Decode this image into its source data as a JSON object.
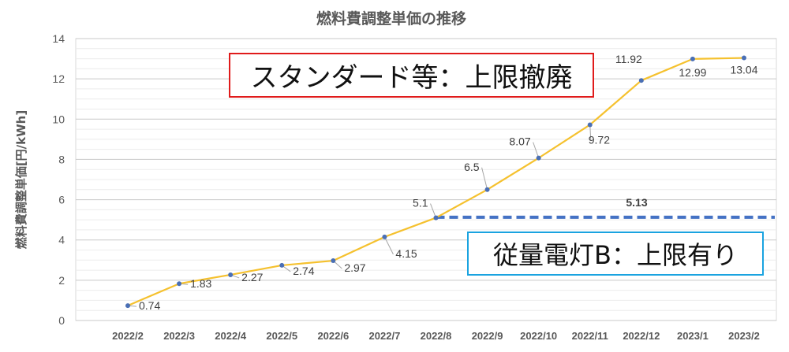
{
  "chart_data": {
    "type": "line",
    "title": "燃料費調整単価の推移",
    "ylabel": "燃料費調整単価[円/kWh]",
    "xlabel": "",
    "ylim": [
      0,
      14
    ],
    "yticks": [
      0,
      2,
      4,
      6,
      8,
      10,
      12,
      14
    ],
    "grid": true,
    "categories": [
      "2022/2",
      "2022/3",
      "2022/4",
      "2022/5",
      "2022/6",
      "2022/7",
      "2022/8",
      "2022/9",
      "2022/10",
      "2022/11",
      "2022/12",
      "2023/1",
      "2023/2"
    ],
    "series": [
      {
        "values": [
          0.74,
          1.83,
          2.27,
          2.74,
          2.97,
          4.15,
          5.1,
          6.5,
          8.07,
          9.72,
          11.92,
          12.99,
          13.04
        ],
        "labels": [
          "0.74",
          "1.83",
          "2.27",
          "2.74",
          "2.97",
          "4.15",
          "5.1",
          "6.5",
          "8.07",
          "9.72",
          "11.92",
          "12.99",
          "13.04"
        ],
        "color": "#f5c12e",
        "marker_color": "#4a6fb5"
      },
      {
        "style": "dashed",
        "color": "#4472c4",
        "start_category": "2022/8",
        "value": 5.13,
        "label": "5.13"
      }
    ],
    "annotations": [
      {
        "id": "standard",
        "text": "スタンダード等：上限撤廃",
        "border_color": "#e01b1b"
      },
      {
        "id": "jyuryo",
        "text": "従量電灯B：上限有り",
        "border_color": "#1aa3e0"
      }
    ]
  }
}
